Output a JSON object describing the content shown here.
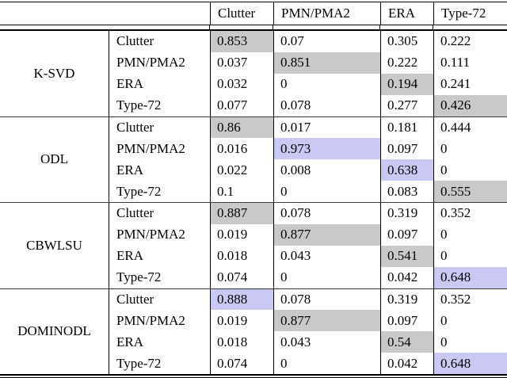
{
  "chart_data": {
    "type": "table",
    "description": "Confusion-matrix table of classification rates per dictionary-learning method",
    "col_headers": [
      "Clutter",
      "PMN/PMA2",
      "ERA",
      "Type-72"
    ],
    "highlight_colors": {
      "gray": "#c9c9c9",
      "blue": "#c9c9f4"
    },
    "groups": [
      {
        "method": "K-SVD",
        "rows": [
          {
            "label": "Clutter",
            "values": [
              {
                "v": "0.853",
                "h": "gray"
              },
              {
                "v": "0.07"
              },
              {
                "v": "0.305"
              },
              {
                "v": "0.222"
              }
            ]
          },
          {
            "label": "PMN/PMA2",
            "values": [
              {
                "v": "0.037"
              },
              {
                "v": "0.851",
                "h": "gray"
              },
              {
                "v": "0.222"
              },
              {
                "v": "0.111"
              }
            ]
          },
          {
            "label": "ERA",
            "values": [
              {
                "v": "0.032"
              },
              {
                "v": "0"
              },
              {
                "v": "0.194",
                "h": "gray"
              },
              {
                "v": "0.241"
              }
            ]
          },
          {
            "label": "Type-72",
            "values": [
              {
                "v": "0.077"
              },
              {
                "v": "0.078"
              },
              {
                "v": "0.277"
              },
              {
                "v": "0.426",
                "h": "gray"
              }
            ]
          }
        ]
      },
      {
        "method": "ODL",
        "rows": [
          {
            "label": "Clutter",
            "values": [
              {
                "v": "0.86",
                "h": "gray"
              },
              {
                "v": "0.017"
              },
              {
                "v": "0.181"
              },
              {
                "v": "0.444"
              }
            ]
          },
          {
            "label": "PMN/PMA2",
            "values": [
              {
                "v": "0.016"
              },
              {
                "v": "0.973",
                "h": "blue"
              },
              {
                "v": "0.097"
              },
              {
                "v": "0"
              }
            ]
          },
          {
            "label": "ERA",
            "values": [
              {
                "v": "0.022"
              },
              {
                "v": "0.008"
              },
              {
                "v": "0.638",
                "h": "blue"
              },
              {
                "v": "0"
              }
            ]
          },
          {
            "label": "Type-72",
            "values": [
              {
                "v": "0.1"
              },
              {
                "v": "0"
              },
              {
                "v": "0.083"
              },
              {
                "v": "0.555",
                "h": "gray"
              }
            ]
          }
        ]
      },
      {
        "method": "CBWLSU",
        "rows": [
          {
            "label": "Clutter",
            "values": [
              {
                "v": "0.887",
                "h": "gray"
              },
              {
                "v": "0.078"
              },
              {
                "v": "0.319"
              },
              {
                "v": "0.352"
              }
            ]
          },
          {
            "label": "PMN/PMA2",
            "values": [
              {
                "v": "0.019"
              },
              {
                "v": "0.877",
                "h": "gray"
              },
              {
                "v": "0.097"
              },
              {
                "v": "0"
              }
            ]
          },
          {
            "label": "ERA",
            "values": [
              {
                "v": "0.018"
              },
              {
                "v": "0.043"
              },
              {
                "v": "0.541",
                "h": "gray"
              },
              {
                "v": "0"
              }
            ]
          },
          {
            "label": "Type-72",
            "values": [
              {
                "v": "0.074"
              },
              {
                "v": "0"
              },
              {
                "v": "0.042"
              },
              {
                "v": "0.648",
                "h": "blue"
              }
            ]
          }
        ]
      },
      {
        "method": "DOMINODL",
        "rows": [
          {
            "label": "Clutter",
            "values": [
              {
                "v": "0.888",
                "h": "blue"
              },
              {
                "v": "0.078"
              },
              {
                "v": "0.319"
              },
              {
                "v": "0.352"
              }
            ]
          },
          {
            "label": "PMN/PMA2",
            "values": [
              {
                "v": "0.019"
              },
              {
                "v": "0.877",
                "h": "gray"
              },
              {
                "v": "0.097"
              },
              {
                "v": "0"
              }
            ]
          },
          {
            "label": "ERA",
            "values": [
              {
                "v": "0.018"
              },
              {
                "v": "0.043"
              },
              {
                "v": "0.54",
                "h": "gray"
              },
              {
                "v": "0"
              }
            ]
          },
          {
            "label": "Type-72",
            "values": [
              {
                "v": "0.074"
              },
              {
                "v": "0"
              },
              {
                "v": "0.042"
              },
              {
                "v": "0.648",
                "h": "blue"
              }
            ]
          }
        ]
      }
    ]
  }
}
